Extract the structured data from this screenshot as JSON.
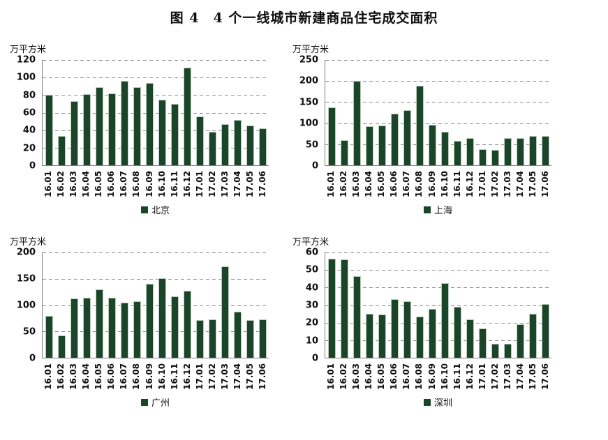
{
  "page": {
    "title": "图 4　4 个一线城市新建商品住宅成交面积"
  },
  "unit_label": "万平方米",
  "colors": {
    "bar": "#1a4529",
    "bar_edge": "#b7cbb9",
    "grid": "#8f8f8f",
    "axis": "#7f7f7f",
    "text": "#0d0d0d"
  },
  "chart_data": [
    {
      "id": "beijing",
      "type": "bar",
      "legend": "北京",
      "ylabel": "万平方米",
      "ylim": [
        0,
        120
      ],
      "ytick_step": 20,
      "yticks": [
        0,
        20,
        40,
        60,
        80,
        100,
        120
      ],
      "grid": "dashed-horizontal",
      "legend_position": "bottom-center",
      "categories": [
        "16.01",
        "16.02",
        "16.03",
        "16.04",
        "16.05",
        "16.06",
        "16.07",
        "16.08",
        "16.09",
        "16.10",
        "16.11",
        "16.12",
        "17.01",
        "17.02",
        "17.03",
        "17.04",
        "17.05",
        "17.06"
      ],
      "values": [
        80,
        33,
        73,
        81,
        89,
        82,
        96,
        89,
        94,
        75,
        70,
        111,
        56,
        38,
        47,
        52,
        45,
        42
      ]
    },
    {
      "id": "shanghai",
      "type": "bar",
      "legend": "上海",
      "ylabel": "万平方米",
      "ylim": [
        0,
        250
      ],
      "ytick_step": 50,
      "yticks": [
        0,
        50,
        100,
        150,
        200,
        250
      ],
      "grid": "dashed-horizontal",
      "legend_position": "bottom-center",
      "categories": [
        "16.01",
        "16.02",
        "16.03",
        "16.04",
        "16.05",
        "16.06",
        "16.07",
        "16.08",
        "16.09",
        "16.10",
        "16.11",
        "16.12",
        "17.01",
        "17.02",
        "17.03",
        "17.04",
        "17.05",
        "17.06"
      ],
      "values": [
        138,
        59,
        201,
        93,
        95,
        123,
        130,
        188,
        96,
        80,
        58,
        64,
        38,
        36,
        65,
        65,
        70,
        70
      ]
    },
    {
      "id": "guangzhou",
      "type": "bar",
      "legend": "广州",
      "ylabel": "万平方米",
      "ylim": [
        0,
        200
      ],
      "ytick_step": 50,
      "yticks": [
        0,
        50,
        100,
        150,
        200
      ],
      "grid": "dashed-horizontal",
      "legend_position": "bottom-center",
      "categories": [
        "16.01",
        "16.02",
        "16.03",
        "16.04",
        "16.05",
        "16.06",
        "16.07",
        "16.08",
        "16.09",
        "16.10",
        "16.11",
        "16.12",
        "17.01",
        "17.02",
        "17.03",
        "17.04",
        "17.05",
        "17.06"
      ],
      "values": [
        80,
        42,
        112,
        114,
        130,
        114,
        105,
        107,
        141,
        151,
        116,
        127,
        71,
        73,
        174,
        87,
        71,
        73
      ]
    },
    {
      "id": "shenzhen",
      "type": "bar",
      "legend": "深圳",
      "ylabel": "万平方米",
      "ylim": [
        0,
        60
      ],
      "ytick_step": 10,
      "yticks": [
        0,
        10,
        20,
        30,
        40,
        50,
        60
      ],
      "grid": "dashed-horizontal",
      "legend_position": "bottom-center",
      "categories": [
        "16.01",
        "16.02",
        "16.03",
        "16.04",
        "16.05",
        "16.06",
        "16.07",
        "16.08",
        "16.09",
        "16.10",
        "16.11",
        "16.12",
        "17.01",
        "17.02",
        "17.03",
        "17.04",
        "17.05",
        "17.06"
      ],
      "values": [
        56.5,
        56,
        46.5,
        25,
        24.5,
        33.5,
        32,
        23.5,
        28,
        42.5,
        29,
        22,
        16.5,
        8,
        8,
        19,
        25,
        30.5
      ]
    }
  ]
}
